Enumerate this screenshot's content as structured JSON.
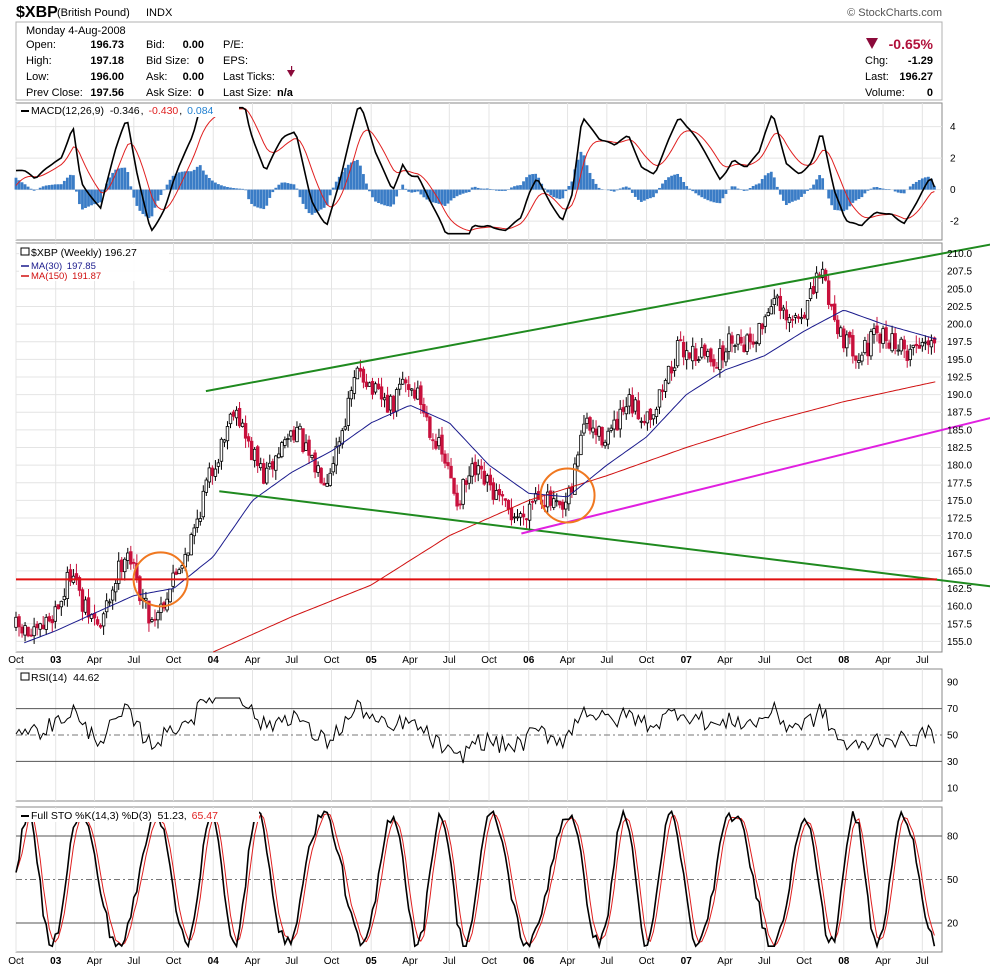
{
  "header": {
    "symbol": "$XBP",
    "name": "(British Pound)",
    "exchange": "INDX",
    "copyright": "© StockCharts.com",
    "date": "Monday  4-Aug-2008",
    "quote": [
      {
        "label": "Open:",
        "value": "196.73"
      },
      {
        "label": "High:",
        "value": "197.18"
      },
      {
        "label": "Low:",
        "value": "196.00"
      },
      {
        "label": "Prev Close:",
        "value": "197.56"
      }
    ],
    "bidask": [
      {
        "label": "Bid:",
        "value": "0.00"
      },
      {
        "label": "Bid Size:",
        "value": "0"
      },
      {
        "label": "Ask:",
        "value": "0.00"
      },
      {
        "label": "Ask Size:",
        "value": "0"
      }
    ],
    "misc": [
      {
        "label": "P/E:",
        "value": ""
      },
      {
        "label": "EPS:",
        "value": ""
      },
      {
        "label": "Last Ticks:",
        "value": ""
      },
      {
        "label": "Last Size:",
        "value": "n/a"
      }
    ],
    "change_pct": "-0.65%",
    "right": [
      {
        "label": "Chg:",
        "value": "-1.29"
      },
      {
        "label": "Last:",
        "value": "196.27"
      },
      {
        "label": "Volume:",
        "value": "0"
      }
    ],
    "down_color": "#8b0a3a"
  },
  "chart_data": [
    {
      "type": "line",
      "panel": "macd",
      "legend": {
        "label": "MACD(12,26,9)",
        "macd": "-0.346",
        "signal": "-0.430",
        "hist": "0.084"
      },
      "colors": {
        "macd": "#000000",
        "signal": "#e02020",
        "hist": "#3a7cc6",
        "hist_value": "#1f7fd0"
      },
      "ylim": [
        -3.2,
        5.5
      ],
      "yticks": [
        -2,
        0,
        2,
        4
      ]
    },
    {
      "type": "candlestick",
      "panel": "price",
      "title": "$XBP (Weekly) 196.27",
      "series": [
        {
          "name": "MA(30)",
          "value": "197.85",
          "color": "#1a1a8c"
        },
        {
          "name": "MA(150)",
          "value": "191.87",
          "color": "#d01010"
        }
      ],
      "ylim": [
        153.5,
        211.5
      ],
      "yticks": [
        "155.0",
        "157.5",
        "160.0",
        "162.5",
        "165.0",
        "167.5",
        "170.0",
        "172.5",
        "175.0",
        "177.5",
        "180.0",
        "182.5",
        "185.0",
        "187.5",
        "190.0",
        "192.5",
        "195.0",
        "197.5",
        "200.0",
        "202.5",
        "205.0",
        "207.5",
        "210.0"
      ],
      "x_range": [
        "2002-10-01",
        "2008-08-04"
      ],
      "xticks": [
        {
          "date": "2002-10-01",
          "label": "Oct",
          "bold": false
        },
        {
          "date": "2003-01-01",
          "label": "03",
          "bold": true
        },
        {
          "date": "2003-04-01",
          "label": "Apr",
          "bold": false
        },
        {
          "date": "2003-07-01",
          "label": "Jul",
          "bold": false
        },
        {
          "date": "2003-10-01",
          "label": "Oct",
          "bold": false
        },
        {
          "date": "2004-01-01",
          "label": "04",
          "bold": true
        },
        {
          "date": "2004-04-01",
          "label": "Apr",
          "bold": false
        },
        {
          "date": "2004-07-01",
          "label": "Jul",
          "bold": false
        },
        {
          "date": "2004-10-01",
          "label": "Oct",
          "bold": false
        },
        {
          "date": "2005-01-01",
          "label": "05",
          "bold": true
        },
        {
          "date": "2005-04-01",
          "label": "Apr",
          "bold": false
        },
        {
          "date": "2005-07-01",
          "label": "Jul",
          "bold": false
        },
        {
          "date": "2005-10-01",
          "label": "Oct",
          "bold": false
        },
        {
          "date": "2006-01-01",
          "label": "06",
          "bold": true
        },
        {
          "date": "2006-04-01",
          "label": "Apr",
          "bold": false
        },
        {
          "date": "2006-07-01",
          "label": "Jul",
          "bold": false
        },
        {
          "date": "2006-10-01",
          "label": "Oct",
          "bold": false
        },
        {
          "date": "2007-01-01",
          "label": "07",
          "bold": true
        },
        {
          "date": "2007-04-01",
          "label": "Apr",
          "bold": false
        },
        {
          "date": "2007-07-01",
          "label": "Jul",
          "bold": false
        },
        {
          "date": "2007-10-01",
          "label": "Oct",
          "bold": false
        },
        {
          "date": "2008-01-01",
          "label": "08",
          "bold": true
        },
        {
          "date": "2008-04-01",
          "label": "Apr",
          "bold": false
        },
        {
          "date": "2008-07-01",
          "label": "Jul",
          "bold": false
        }
      ],
      "price_path": [
        [
          "2002-10-01",
          157.0
        ],
        [
          "2002-11-15",
          155.5
        ],
        [
          "2002-12-20",
          158.5
        ],
        [
          "2003-01-15",
          161.0
        ],
        [
          "2003-02-10",
          166.0
        ],
        [
          "2003-03-01",
          160.0
        ],
        [
          "2003-04-15",
          157.0
        ],
        [
          "2003-05-20",
          164.0
        ],
        [
          "2003-06-15",
          168.5
        ],
        [
          "2003-07-10",
          163.0
        ],
        [
          "2003-08-10",
          158.0
        ],
        [
          "2003-09-10",
          161.0
        ],
        [
          "2003-10-15",
          166.0
        ],
        [
          "2003-11-15",
          170.0
        ],
        [
          "2003-12-15",
          177.0
        ],
        [
          "2004-01-15",
          182.0
        ],
        [
          "2004-02-20",
          189.0
        ],
        [
          "2004-03-20",
          183.0
        ],
        [
          "2004-05-01",
          178.0
        ],
        [
          "2004-06-10",
          183.0
        ],
        [
          "2004-07-10",
          185.5
        ],
        [
          "2004-08-15",
          180.0
        ],
        [
          "2004-09-20",
          178.5
        ],
        [
          "2004-10-20",
          184.0
        ],
        [
          "2004-12-05",
          194.0
        ],
        [
          "2005-01-10",
          190.0
        ],
        [
          "2005-02-20",
          188.0
        ],
        [
          "2005-03-15",
          192.0
        ],
        [
          "2005-04-20",
          190.0
        ],
        [
          "2005-05-20",
          185.0
        ],
        [
          "2005-06-20",
          180.5
        ],
        [
          "2005-07-20",
          175.0
        ],
        [
          "2005-08-25",
          179.0
        ],
        [
          "2005-09-30",
          177.0
        ],
        [
          "2005-11-10",
          173.5
        ],
        [
          "2005-12-15",
          172.5
        ],
        [
          "2006-01-20",
          176.5
        ],
        [
          "2006-02-20",
          174.5
        ],
        [
          "2006-03-20",
          173.0
        ],
        [
          "2006-04-10",
          176.0
        ],
        [
          "2006-05-05",
          186.0
        ],
        [
          "2006-06-15",
          184.0
        ],
        [
          "2006-07-20",
          185.0
        ],
        [
          "2006-08-20",
          188.5
        ],
        [
          "2006-09-20",
          187.0
        ],
        [
          "2006-10-20",
          188.0
        ],
        [
          "2006-11-20",
          193.0
        ],
        [
          "2006-12-15",
          196.5
        ],
        [
          "2007-01-20",
          196.0
        ],
        [
          "2007-02-20",
          195.5
        ],
        [
          "2007-03-20",
          195.0
        ],
        [
          "2007-04-20",
          198.5
        ],
        [
          "2007-05-20",
          197.5
        ],
        [
          "2007-06-20",
          199.0
        ],
        [
          "2007-07-20",
          204.0
        ],
        [
          "2007-08-20",
          200.0
        ],
        [
          "2007-09-20",
          201.0
        ],
        [
          "2007-10-20",
          204.0
        ],
        [
          "2007-11-10",
          208.0
        ],
        [
          "2007-12-10",
          201.0
        ],
        [
          "2008-01-10",
          197.0
        ],
        [
          "2008-02-10",
          196.0
        ],
        [
          "2008-03-15",
          198.0
        ],
        [
          "2008-04-20",
          198.0
        ],
        [
          "2008-05-20",
          196.0
        ],
        [
          "2008-06-20",
          197.0
        ],
        [
          "2008-07-20",
          198.5
        ],
        [
          "2008-08-04",
          196.3
        ]
      ],
      "ma30_path": [
        [
          "2002-10-20",
          154.8
        ],
        [
          "2003-01-01",
          156.5
        ],
        [
          "2003-04-01",
          159.0
        ],
        [
          "2003-07-01",
          161.5
        ],
        [
          "2003-10-01",
          162.5
        ],
        [
          "2004-01-01",
          167.0
        ],
        [
          "2004-04-01",
          175.0
        ],
        [
          "2004-07-01",
          179.0
        ],
        [
          "2004-10-01",
          182.0
        ],
        [
          "2005-01-01",
          186.0
        ],
        [
          "2005-04-01",
          188.5
        ],
        [
          "2005-07-01",
          186.0
        ],
        [
          "2005-10-01",
          180.0
        ],
        [
          "2006-01-01",
          176.0
        ],
        [
          "2006-04-01",
          175.5
        ],
        [
          "2006-07-01",
          180.0
        ],
        [
          "2006-10-01",
          184.0
        ],
        [
          "2007-01-01",
          190.0
        ],
        [
          "2007-04-01",
          193.5
        ],
        [
          "2007-07-01",
          195.5
        ],
        [
          "2007-10-01",
          199.0
        ],
        [
          "2008-01-01",
          202.0
        ],
        [
          "2008-04-01",
          200.0
        ],
        [
          "2008-08-04",
          197.85
        ]
      ],
      "ma150_path": [
        [
          "2004-01-01",
          153.5
        ],
        [
          "2004-07-01",
          158.5
        ],
        [
          "2005-01-01",
          163.0
        ],
        [
          "2005-07-01",
          170.0
        ],
        [
          "2006-01-01",
          175.0
        ],
        [
          "2006-07-01",
          178.5
        ],
        [
          "2007-01-01",
          182.5
        ],
        [
          "2007-07-01",
          186.0
        ],
        [
          "2008-01-01",
          189.0
        ],
        [
          "2008-08-04",
          191.87
        ]
      ],
      "annotations": {
        "lines": [
          {
            "color": "#1f8a1f",
            "from": [
              "2003-12-15",
              190.5
            ],
            "to": [
              "2008-08-04",
              211.3
            ]
          },
          {
            "color": "#1f8a1f",
            "from": [
              "2004-01-15",
              176.3
            ],
            "to": [
              "2008-08-04",
              162.8
            ]
          },
          {
            "color": "#e020e0",
            "from": [
              "2005-12-15",
              170.3
            ],
            "to": [
              "2008-08-04",
              185.2
            ]
          },
          {
            "color": "#e01010",
            "from": [
              "2002-10-01",
              163.8
            ],
            "to": [
              "2008-08-04",
              163.8
            ]
          }
        ],
        "circles": [
          {
            "color": "#f07820",
            "center": [
              "2003-09-01",
              163.8
            ]
          },
          {
            "color": "#f07820",
            "center": [
              "2006-04-01",
              175.7
            ]
          }
        ]
      }
    },
    {
      "type": "line",
      "panel": "rsi",
      "legend": {
        "label": "RSI(14)",
        "value": "44.62"
      },
      "ylim": [
        0,
        100
      ],
      "yticks": [
        10,
        30,
        50,
        70,
        90
      ],
      "levels": [
        30,
        50,
        70
      ]
    },
    {
      "type": "line",
      "panel": "stochastic",
      "legend": {
        "label": "Full STO %K(14,3) %D(3)",
        "k": "51.23",
        "d": "65.47"
      },
      "colors": {
        "k": "#000000",
        "d": "#e02020"
      },
      "ylim": [
        0,
        100
      ],
      "yticks": [
        20,
        50,
        80
      ],
      "levels": [
        20,
        50,
        80
      ]
    }
  ]
}
